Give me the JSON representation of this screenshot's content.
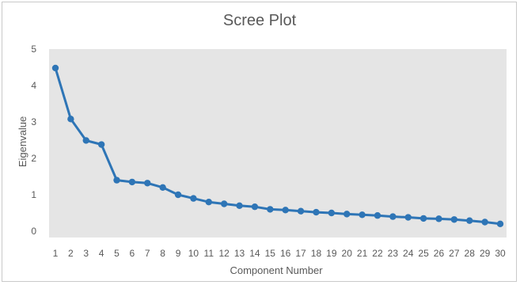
{
  "chart_data": {
    "type": "line",
    "title": "Scree Plot",
    "xlabel": "Component Number",
    "ylabel": "Eigenvalue",
    "x": [
      1,
      2,
      3,
      4,
      5,
      6,
      7,
      8,
      9,
      10,
      11,
      12,
      13,
      14,
      15,
      16,
      17,
      18,
      19,
      20,
      21,
      22,
      23,
      24,
      25,
      26,
      27,
      28,
      29,
      30
    ],
    "series": [
      {
        "values": [
          4.48,
          3.08,
          2.49,
          2.38,
          1.4,
          1.35,
          1.32,
          1.2,
          1.0,
          0.9,
          0.8,
          0.75,
          0.7,
          0.67,
          0.6,
          0.58,
          0.55,
          0.52,
          0.5,
          0.47,
          0.45,
          0.43,
          0.4,
          0.38,
          0.35,
          0.34,
          0.32,
          0.29,
          0.25,
          0.2
        ],
        "color": "#2e75b6"
      }
    ],
    "yticks": [
      0,
      1,
      2,
      3,
      4,
      5
    ],
    "ylim": [
      0,
      5
    ],
    "plot_background": "#e5e5e5",
    "grid": false,
    "legend": false
  }
}
